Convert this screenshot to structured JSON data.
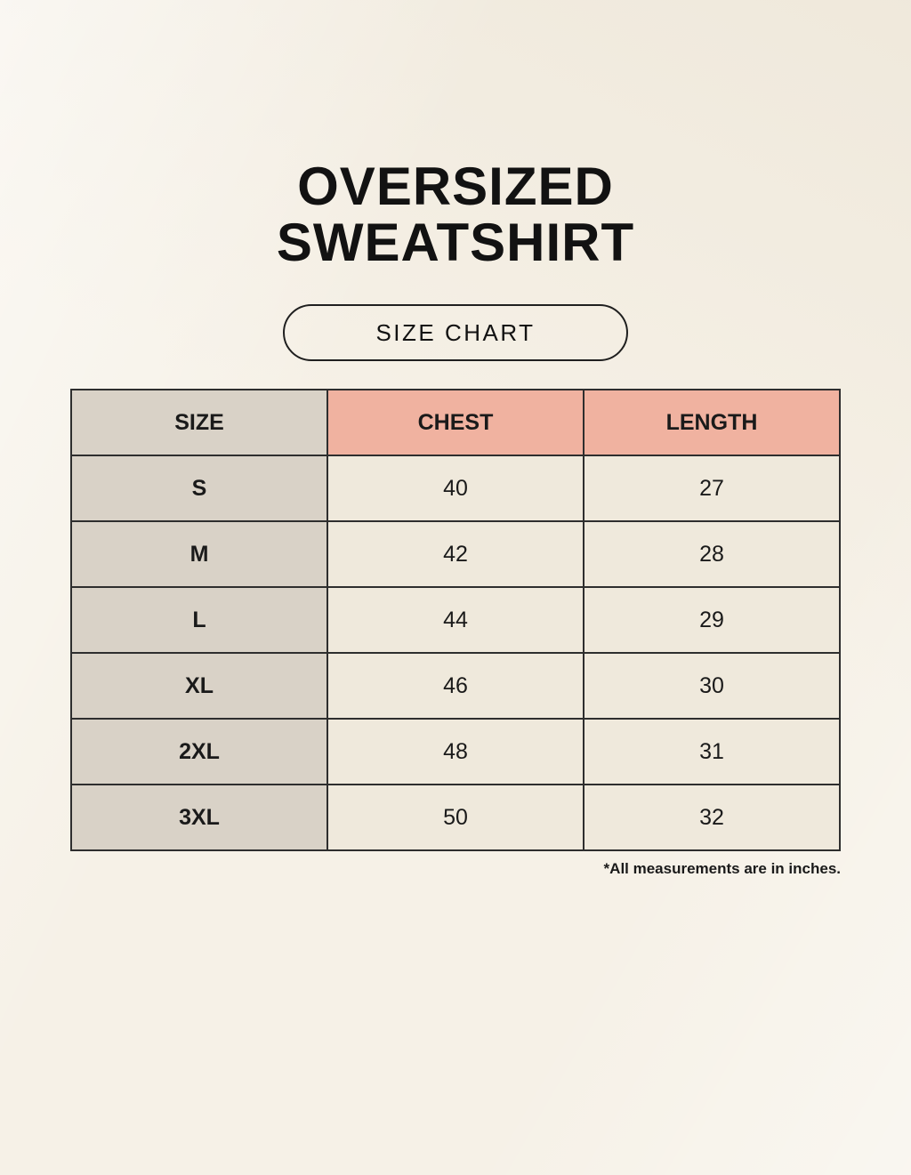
{
  "page": {
    "title_line1": "OVERSIZED",
    "title_line2": "SWEATSHIRT",
    "badge_label": "SIZE CHART",
    "footnote": "*All measurements are in inches."
  },
  "colors": {
    "background": "#f6f1e7",
    "size_col_bg": "#d9d2c7",
    "header_measure_bg": "#f0b2a0",
    "data_cell_bg": "#efe9dc",
    "border": "#2e2e2e",
    "text": "#1a1a1a"
  },
  "chart_data": {
    "type": "table",
    "title": "OVERSIZED SWEATSHIRT",
    "subtitle": "SIZE CHART",
    "columns": [
      "SIZE",
      "CHEST",
      "LENGTH"
    ],
    "rows": [
      [
        "S",
        "40",
        "27"
      ],
      [
        "M",
        "42",
        "28"
      ],
      [
        "L",
        "44",
        "29"
      ],
      [
        "XL",
        "46",
        "30"
      ],
      [
        "2XL",
        "48",
        "31"
      ],
      [
        "3XL",
        "50",
        "32"
      ]
    ],
    "units": "inches"
  }
}
